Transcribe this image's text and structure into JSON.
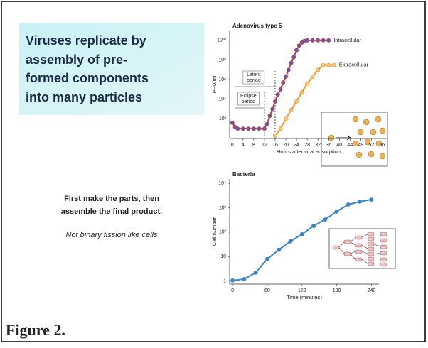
{
  "slide": {
    "title_lines": [
      "Viruses replicate by",
      "assembly of pre-",
      "formed components",
      "into many particles"
    ],
    "text_lines": [
      "First make the parts, then",
      "assemble the final product."
    ],
    "note": "Not binary fission like cells"
  },
  "caption": "Figure 2.",
  "chart_data": [
    {
      "type": "line",
      "title": "Adenovirus type 5",
      "x_label": "Hours after viral adsorption",
      "y_label": "PFU/ml",
      "log_y": true,
      "xlim": [
        -1,
        58
      ],
      "ylim": [
        1,
        100000000000
      ],
      "xticks": [
        0,
        4,
        8,
        12,
        16,
        20,
        24,
        28,
        32,
        36,
        40,
        44,
        48,
        52,
        56
      ],
      "yticks": [
        {
          "value": 100,
          "label": "10²"
        },
        {
          "value": 10000,
          "label": "10⁴"
        },
        {
          "value": 1000000,
          "label": "10⁶"
        },
        {
          "value": 100000000,
          "label": "10⁸"
        },
        {
          "value": 10000000000,
          "label": "10¹⁰"
        }
      ],
      "annotations": [
        {
          "lines": [
            "Latent",
            "period"
          ],
          "x": 16
        },
        {
          "lines": [
            "Eclipse",
            "period"
          ],
          "x": 12
        }
      ],
      "series": [
        {
          "name": "Intracellular",
          "color": "#d3343c",
          "marker_color": "#5b5fb0",
          "x": [
            0,
            1,
            2,
            4,
            6,
            8,
            10,
            12,
            13,
            14,
            15,
            16,
            17,
            18,
            19,
            20,
            21,
            22,
            23,
            24,
            25,
            26,
            27,
            28,
            30,
            32,
            34,
            36
          ],
          "values": [
            40,
            15,
            10,
            10,
            10,
            10,
            10,
            10,
            30,
            200,
            1000,
            6000,
            30000,
            100000,
            500000,
            2000000,
            10000000,
            50000000,
            200000000,
            1000000000,
            3000000000,
            6000000000,
            9000000000,
            10000000000,
            10000000000,
            10000000000,
            10000000000,
            10000000000
          ]
        },
        {
          "name": "Extracellular",
          "color": "#e8962e",
          "marker_color": "#f6c674",
          "x": [
            16,
            18,
            20,
            22,
            24,
            26,
            28,
            30,
            32,
            34,
            36,
            38
          ],
          "values": [
            2,
            10,
            100,
            800,
            6000,
            50000,
            400000,
            2000000,
            10000000,
            30000000,
            30000000,
            30000000
          ]
        }
      ]
    },
    {
      "type": "line",
      "title": "Bacteria",
      "x_label": "Time (minutes)",
      "y_label": "Cell number",
      "log_y": true,
      "xlim": [
        -5,
        253
      ],
      "ylim": [
        0.75,
        15000
      ],
      "xticks": [
        0,
        60,
        120,
        180,
        240
      ],
      "yticks": [
        1,
        10,
        {
          "value": 100,
          "label": "10²"
        },
        {
          "value": 1000,
          "label": "10³"
        },
        {
          "value": 10000,
          "label": "10⁴"
        }
      ],
      "series": [
        {
          "color": "#3a86c8",
          "marker_color": "#3a86c8",
          "x": [
            0,
            20,
            40,
            60,
            80,
            100,
            120,
            140,
            160,
            180,
            200,
            220,
            240
          ],
          "values": [
            1.06,
            1.2,
            2.2,
            8,
            19,
            42,
            82,
            180,
            330,
            700,
            1350,
            1780,
            2150
          ]
        }
      ]
    }
  ]
}
